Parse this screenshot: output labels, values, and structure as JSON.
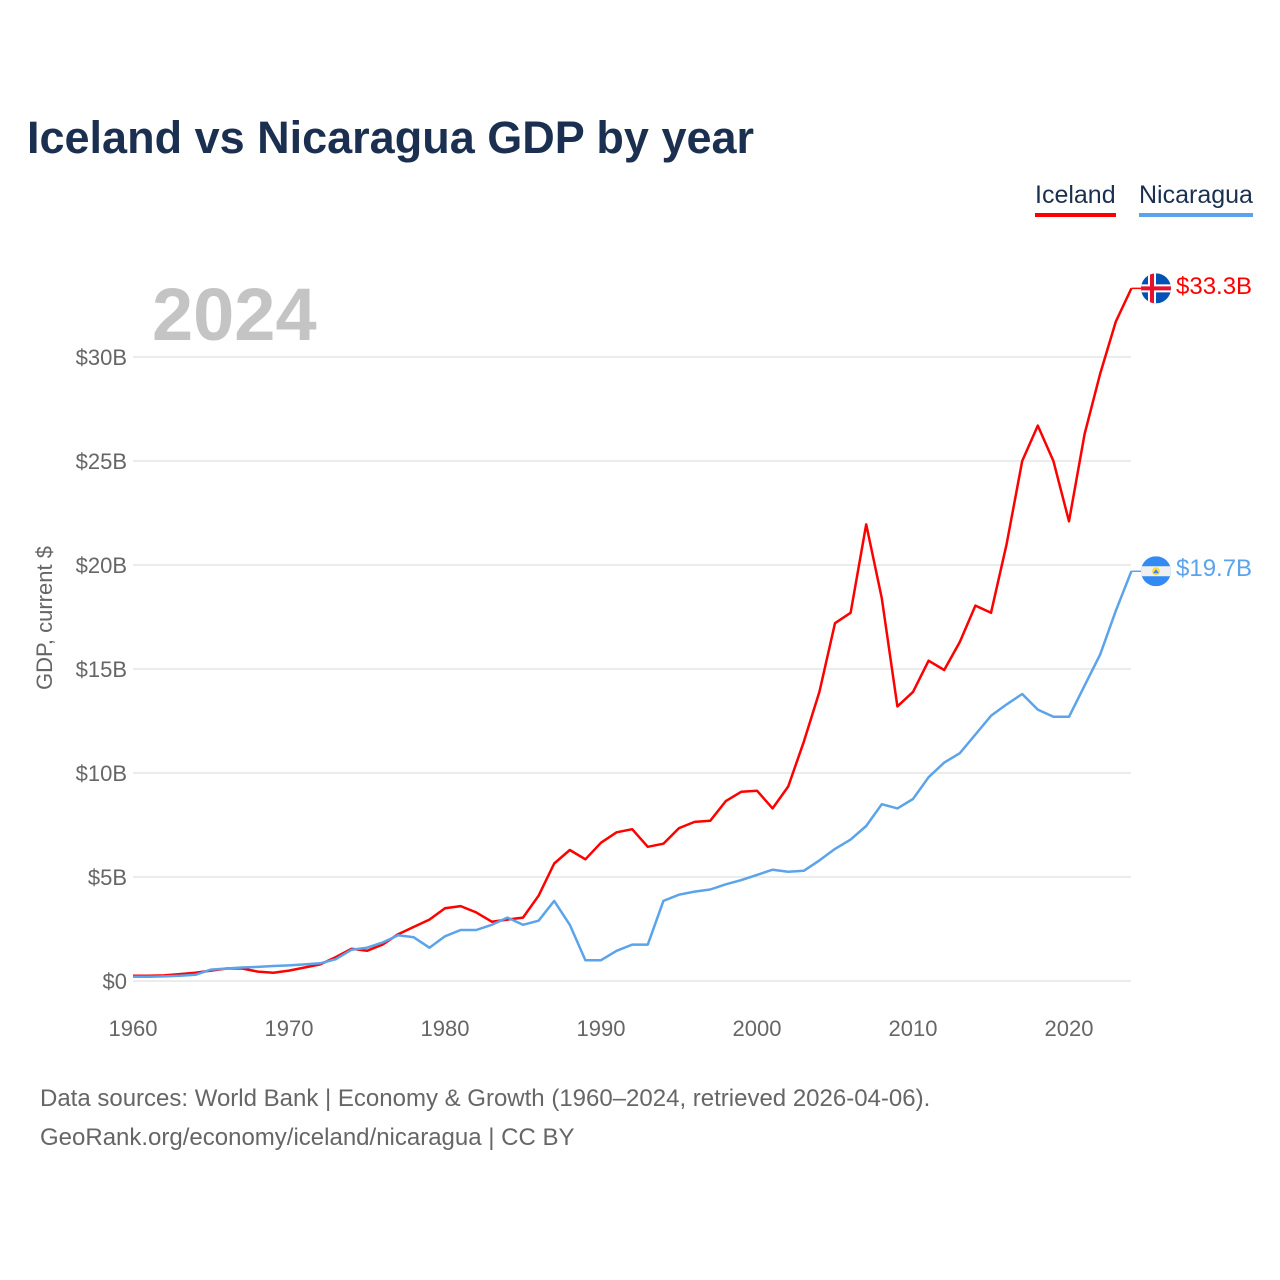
{
  "title": "Iceland vs Nicaragua GDP by year",
  "year_label": "2024",
  "legend": [
    {
      "name": "Iceland",
      "color": "#ff0000"
    },
    {
      "name": "Nicaragua",
      "color": "#5ba3ea"
    }
  ],
  "end_labels": {
    "iceland": "$33.3B",
    "nicaragua": "$19.7B"
  },
  "footer": {
    "line1": "Data sources: World Bank | Economy & Growth (1960–2024, retrieved 2026-04-06).",
    "line2": "GeoRank.org/economy/iceland/nicaragua | CC BY"
  },
  "chart_data": {
    "type": "line",
    "title": "Iceland vs Nicaragua GDP by year",
    "xlabel": "",
    "ylabel": "GDP, current $",
    "xlim": [
      1960,
      2024
    ],
    "ylim": [
      0,
      30
    ],
    "x_ticks": [
      1960,
      1970,
      1980,
      1990,
      2000,
      2010,
      2020
    ],
    "x_tick_labels": [
      "1960",
      "1970",
      "1980",
      "1990",
      "2000",
      "2010",
      "2020"
    ],
    "y_ticks": [
      0,
      5,
      10,
      15,
      20,
      25,
      30
    ],
    "y_tick_labels": [
      "$0",
      "$5B",
      "$10B",
      "$15B",
      "$20B",
      "$25B",
      "$30B"
    ],
    "grid": true,
    "legend_position": "top-right",
    "x_start": 1960,
    "series": [
      {
        "name": "Iceland",
        "color": "#ff0000",
        "values": [
          0.25,
          0.25,
          0.27,
          0.33,
          0.4,
          0.5,
          0.6,
          0.6,
          0.45,
          0.4,
          0.5,
          0.65,
          0.8,
          1.15,
          1.55,
          1.45,
          1.75,
          2.25,
          2.6,
          2.95,
          3.5,
          3.6,
          3.3,
          2.85,
          2.95,
          3.05,
          4.1,
          5.65,
          6.3,
          5.85,
          6.65,
          7.15,
          7.3,
          6.45,
          6.6,
          7.35,
          7.65,
          7.7,
          8.65,
          9.1,
          9.15,
          8.3,
          9.35,
          11.5,
          13.9,
          17.2,
          17.7,
          21.95,
          18.4,
          13.2,
          13.9,
          15.4,
          14.95,
          16.3,
          18.05,
          17.7,
          21.0,
          25.0,
          26.7,
          25.0,
          22.1,
          26.3,
          29.2,
          31.7,
          33.3
        ]
      },
      {
        "name": "Nicaragua",
        "color": "#5ba3ea",
        "values": [
          0.2,
          0.2,
          0.22,
          0.25,
          0.3,
          0.55,
          0.6,
          0.65,
          0.68,
          0.72,
          0.75,
          0.8,
          0.85,
          1.05,
          1.5,
          1.6,
          1.85,
          2.2,
          2.1,
          1.6,
          2.15,
          2.45,
          2.45,
          2.7,
          3.05,
          2.7,
          2.9,
          3.85,
          2.7,
          1.0,
          1.0,
          1.45,
          1.75,
          1.75,
          3.85,
          4.15,
          4.3,
          4.4,
          4.65,
          4.85,
          5.1,
          5.35,
          5.25,
          5.3,
          5.8,
          6.35,
          6.8,
          7.45,
          8.5,
          8.3,
          8.75,
          9.8,
          10.5,
          10.95,
          11.85,
          12.75,
          13.3,
          13.8,
          13.05,
          12.7,
          12.7,
          14.2,
          15.7,
          17.8,
          19.7
        ]
      }
    ]
  }
}
